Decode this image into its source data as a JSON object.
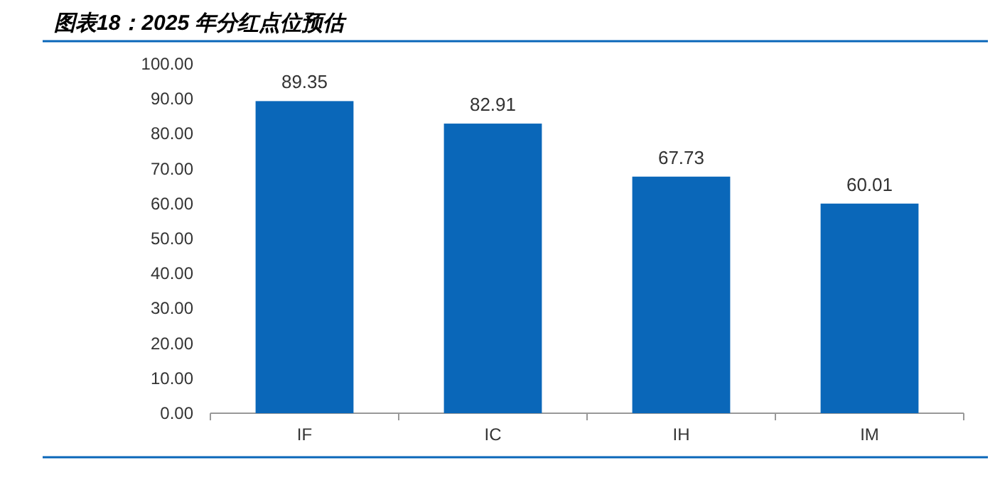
{
  "chart_data": {
    "type": "bar",
    "title": "图表18：2025 年分红点位预估",
    "categories": [
      "IF",
      "IC",
      "IH",
      "IM"
    ],
    "values": [
      89.35,
      82.91,
      67.73,
      60.01
    ],
    "color": "#0a67b9",
    "ylim": [
      0,
      100
    ],
    "yticks": [
      {
        "value": 0,
        "label": "0.00"
      },
      {
        "value": 10,
        "label": "10.00"
      },
      {
        "value": 20,
        "label": "20.00"
      },
      {
        "value": 30,
        "label": "30.00"
      },
      {
        "value": 40,
        "label": "40.00"
      },
      {
        "value": 50,
        "label": "50.00"
      },
      {
        "value": 60,
        "label": "60.00"
      },
      {
        "value": 70,
        "label": "70.00"
      },
      {
        "value": 80,
        "label": "80.00"
      },
      {
        "value": 90,
        "label": "90.00"
      },
      {
        "value": 100,
        "label": "100.00"
      }
    ],
    "data_labels": true,
    "grid": false
  }
}
